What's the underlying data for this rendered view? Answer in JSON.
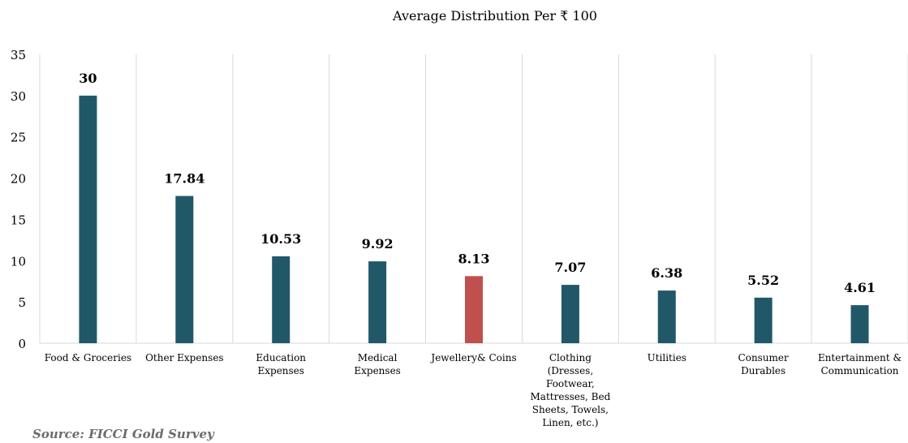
{
  "chart_data": {
    "type": "bar",
    "title": "Average Distribution Per ₹ 100",
    "xlabel": "",
    "ylabel": "",
    "ylim": [
      0,
      35
    ],
    "yticks": [
      0,
      5,
      10,
      15,
      20,
      25,
      30,
      35
    ],
    "grid": "vertical",
    "categories": [
      [
        "Food & Groceries"
      ],
      [
        "Other Expenses"
      ],
      [
        "Education",
        "Expenses"
      ],
      [
        "Medical",
        "Expenses"
      ],
      [
        "Jewellery& Coins"
      ],
      [
        "Clothing",
        "(Dresses,",
        "Footwear,",
        "Mattresses, Bed",
        "Sheets, Towels,",
        "Linen, etc.)"
      ],
      [
        "Utilities"
      ],
      [
        "Consumer",
        "Durables"
      ],
      [
        "Entertainment &",
        "Communication"
      ]
    ],
    "values": [
      30,
      17.84,
      10.53,
      9.92,
      8.13,
      7.07,
      6.38,
      5.52,
      4.61
    ],
    "data_labels": [
      "30",
      "17.84",
      "10.53",
      "9.92",
      "8.13",
      "7.07",
      "6.38",
      "5.52",
      "4.61"
    ],
    "colors": [
      "#215868",
      "#215868",
      "#215868",
      "#215868",
      "#c0504d",
      "#215868",
      "#215868",
      "#215868",
      "#215868"
    ],
    "grid_color": "#d9d9d9"
  },
  "source": "Source: FICCI Gold Survey"
}
